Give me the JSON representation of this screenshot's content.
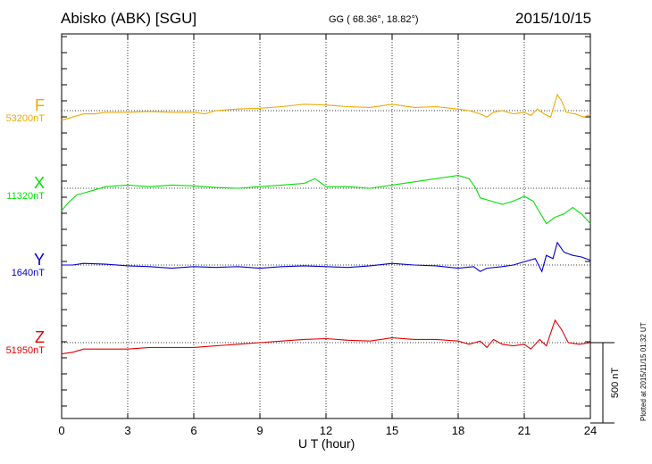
{
  "header": {
    "station": "Abisko (ABK)  [SGU]",
    "coords": "GG ( 68.36°,  18.82°)",
    "date": "2015/10/15"
  },
  "footer_note": "Plotted at 2015/11/15 01:32 UT",
  "colors": {
    "F": "#f0a800",
    "X": "#00e000",
    "Y": "#0000cc",
    "Z": "#e00000"
  },
  "chart_data": {
    "type": "line",
    "xlabel": "U T (hour)",
    "xlim": [
      0,
      24
    ],
    "x_ticks": [
      "0",
      "3",
      "6",
      "9",
      "12",
      "15",
      "18",
      "21",
      "24"
    ],
    "scale_bar": "500 nT",
    "scale_nT": 500,
    "series": [
      {
        "name": "F",
        "baseline": "53200nT",
        "points": [
          [
            0,
            -60
          ],
          [
            0.5,
            -40
          ],
          [
            1,
            -20
          ],
          [
            1.5,
            -20
          ],
          [
            2,
            -10
          ],
          [
            3,
            -10
          ],
          [
            4,
            -5
          ],
          [
            5,
            -10
          ],
          [
            6,
            -10
          ],
          [
            6.5,
            -20
          ],
          [
            7,
            0
          ],
          [
            8,
            10
          ],
          [
            9,
            15
          ],
          [
            10,
            25
          ],
          [
            11,
            40
          ],
          [
            12,
            35
          ],
          [
            13,
            25
          ],
          [
            14,
            20
          ],
          [
            15,
            40
          ],
          [
            16,
            20
          ],
          [
            17,
            25
          ],
          [
            18,
            10
          ],
          [
            18.5,
            0
          ],
          [
            19,
            -20
          ],
          [
            19.3,
            -40
          ],
          [
            19.6,
            -10
          ],
          [
            20,
            0
          ],
          [
            20.5,
            -20
          ],
          [
            21,
            -10
          ],
          [
            21.3,
            -30
          ],
          [
            21.6,
            10
          ],
          [
            21.9,
            -20
          ],
          [
            22.2,
            -40
          ],
          [
            22.5,
            100
          ],
          [
            22.7,
            60
          ],
          [
            22.9,
            -10
          ],
          [
            23.3,
            -20
          ],
          [
            23.7,
            -40
          ],
          [
            24,
            -25
          ]
        ]
      },
      {
        "name": "X",
        "baseline": "11320nT",
        "points": [
          [
            0,
            -140
          ],
          [
            0.3,
            -90
          ],
          [
            0.7,
            -40
          ],
          [
            1,
            -30
          ],
          [
            1.5,
            -10
          ],
          [
            2,
            10
          ],
          [
            3,
            20
          ],
          [
            4,
            10
          ],
          [
            5,
            20
          ],
          [
            6,
            15
          ],
          [
            7,
            5
          ],
          [
            8,
            0
          ],
          [
            9,
            10
          ],
          [
            10,
            20
          ],
          [
            11,
            30
          ],
          [
            11.5,
            60
          ],
          [
            12,
            10
          ],
          [
            13,
            10
          ],
          [
            14,
            0
          ],
          [
            15,
            20
          ],
          [
            16,
            40
          ],
          [
            17,
            60
          ],
          [
            18,
            80
          ],
          [
            18.5,
            60
          ],
          [
            18.8,
            0
          ],
          [
            19,
            -60
          ],
          [
            19.5,
            -80
          ],
          [
            20,
            -100
          ],
          [
            20.5,
            -80
          ],
          [
            21,
            -50
          ],
          [
            21.4,
            -80
          ],
          [
            21.7,
            -150
          ],
          [
            22,
            -220
          ],
          [
            22.4,
            -180
          ],
          [
            22.8,
            -160
          ],
          [
            23.2,
            -120
          ],
          [
            23.6,
            -160
          ],
          [
            24,
            -220
          ]
        ]
      },
      {
        "name": "Y",
        "baseline": "1640nT",
        "points": [
          [
            0,
            0
          ],
          [
            0.5,
            0
          ],
          [
            1,
            10
          ],
          [
            2,
            5
          ],
          [
            3,
            -5
          ],
          [
            4,
            -10
          ],
          [
            5,
            -20
          ],
          [
            6,
            -10
          ],
          [
            7,
            -15
          ],
          [
            8,
            -10
          ],
          [
            9,
            -20
          ],
          [
            10,
            -10
          ],
          [
            11,
            -5
          ],
          [
            12,
            -10
          ],
          [
            13,
            -15
          ],
          [
            14,
            -5
          ],
          [
            15,
            10
          ],
          [
            16,
            0
          ],
          [
            17,
            -5
          ],
          [
            18,
            -20
          ],
          [
            18.7,
            -10
          ],
          [
            19,
            -40
          ],
          [
            19.3,
            -20
          ],
          [
            20,
            -10
          ],
          [
            20.5,
            0
          ],
          [
            21,
            20
          ],
          [
            21.5,
            40
          ],
          [
            21.8,
            -40
          ],
          [
            22,
            60
          ],
          [
            22.3,
            40
          ],
          [
            22.5,
            140
          ],
          [
            22.8,
            80
          ],
          [
            23.2,
            60
          ],
          [
            23.6,
            50
          ],
          [
            24,
            30
          ]
        ]
      },
      {
        "name": "Z",
        "baseline": "51950nT",
        "points": [
          [
            0,
            -70
          ],
          [
            0.5,
            -60
          ],
          [
            1,
            -40
          ],
          [
            2,
            -40
          ],
          [
            3,
            -40
          ],
          [
            4,
            -30
          ],
          [
            5,
            -30
          ],
          [
            6,
            -30
          ],
          [
            7,
            -20
          ],
          [
            8,
            -10
          ],
          [
            9,
            0
          ],
          [
            10,
            10
          ],
          [
            11,
            20
          ],
          [
            12,
            25
          ],
          [
            13,
            15
          ],
          [
            14,
            10
          ],
          [
            15,
            30
          ],
          [
            16,
            20
          ],
          [
            17,
            20
          ],
          [
            18,
            10
          ],
          [
            18.5,
            -10
          ],
          [
            19,
            10
          ],
          [
            19.3,
            -30
          ],
          [
            19.6,
            20
          ],
          [
            20,
            -10
          ],
          [
            20.5,
            -20
          ],
          [
            21,
            -10
          ],
          [
            21.3,
            -40
          ],
          [
            21.7,
            20
          ],
          [
            22,
            -20
          ],
          [
            22.4,
            140
          ],
          [
            22.7,
            80
          ],
          [
            23,
            0
          ],
          [
            23.5,
            -10
          ],
          [
            24,
            0
          ]
        ]
      }
    ]
  }
}
